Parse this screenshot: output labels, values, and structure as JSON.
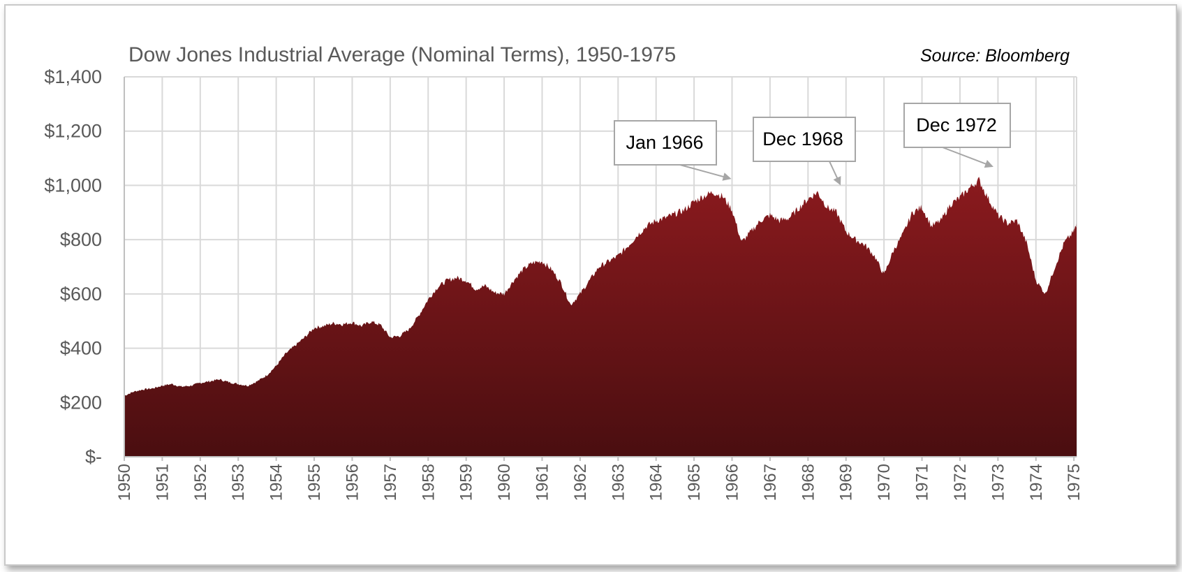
{
  "chart_data": {
    "type": "area",
    "title": "Dow Jones Industrial Average (Nominal Terms), 1950-1975",
    "source": "Source: Bloomberg",
    "xlabel": "",
    "ylabel": "",
    "xlim": [
      1950,
      1975.07
    ],
    "ylim": [
      0,
      1400
    ],
    "grid": true,
    "y_ticks": [
      {
        "value": 0,
        "label": "$-"
      },
      {
        "value": 200,
        "label": "$200"
      },
      {
        "value": 400,
        "label": "$400"
      },
      {
        "value": 600,
        "label": "$600"
      },
      {
        "value": 800,
        "label": "$800"
      },
      {
        "value": 1000,
        "label": "$1,000"
      },
      {
        "value": 1200,
        "label": "$1,200"
      },
      {
        "value": 1400,
        "label": "$1,400"
      }
    ],
    "x_ticks": [
      "1950",
      "1951",
      "1952",
      "1953",
      "1954",
      "1955",
      "1956",
      "1957",
      "1958",
      "1959",
      "1960",
      "1961",
      "1962",
      "1963",
      "1964",
      "1965",
      "1966",
      "1967",
      "1968",
      "1969",
      "1970",
      "1971",
      "1972",
      "1973",
      "1974",
      "1975"
    ],
    "series": [
      {
        "name": "Dow Jones Industrial Average",
        "color_top": "#8b1a1e",
        "color_bottom": "#4a0e10",
        "x": [
          1950.0,
          1950.25,
          1950.5,
          1950.75,
          1951.0,
          1951.25,
          1951.5,
          1951.75,
          1952.0,
          1952.25,
          1952.5,
          1952.75,
          1953.0,
          1953.25,
          1953.5,
          1953.75,
          1954.0,
          1954.25,
          1954.5,
          1954.75,
          1955.0,
          1955.25,
          1955.5,
          1955.75,
          1956.0,
          1956.25,
          1956.5,
          1956.75,
          1957.0,
          1957.25,
          1957.5,
          1957.75,
          1958.0,
          1958.25,
          1958.5,
          1958.75,
          1959.0,
          1959.25,
          1959.5,
          1959.75,
          1960.0,
          1960.25,
          1960.5,
          1960.75,
          1961.0,
          1961.25,
          1961.5,
          1961.75,
          1962.0,
          1962.25,
          1962.5,
          1962.75,
          1963.0,
          1963.25,
          1963.5,
          1963.75,
          1964.0,
          1964.25,
          1964.5,
          1964.75,
          1965.0,
          1965.25,
          1965.5,
          1965.75,
          1966.0,
          1966.25,
          1966.5,
          1966.75,
          1967.0,
          1967.25,
          1967.5,
          1967.75,
          1968.0,
          1968.25,
          1968.5,
          1968.75,
          1969.0,
          1969.25,
          1969.5,
          1969.75,
          1970.0,
          1970.25,
          1970.5,
          1970.75,
          1971.0,
          1971.25,
          1971.5,
          1971.75,
          1972.0,
          1972.25,
          1972.5,
          1972.75,
          1973.0,
          1973.25,
          1973.5,
          1973.75,
          1974.0,
          1974.25,
          1974.5,
          1974.75,
          1975.0,
          1975.07
        ],
        "values": [
          225,
          240,
          248,
          252,
          262,
          268,
          258,
          262,
          272,
          278,
          285,
          275,
          268,
          262,
          278,
          300,
          335,
          380,
          410,
          440,
          475,
          482,
          492,
          488,
          495,
          482,
          498,
          485,
          440,
          445,
          470,
          520,
          580,
          625,
          650,
          660,
          650,
          618,
          630,
          605,
          600,
          650,
          690,
          715,
          720,
          690,
          640,
          560,
          600,
          650,
          700,
          720,
          740,
          775,
          815,
          850,
          870,
          880,
          895,
          910,
          940,
          960,
          975,
          960,
          910,
          790,
          830,
          870,
          890,
          870,
          880,
          915,
          950,
          975,
          920,
          900,
          830,
          800,
          780,
          740,
          670,
          760,
          820,
          900,
          920,
          850,
          870,
          930,
          955,
          990,
          1020,
          950,
          890,
          860,
          870,
          790,
          650,
          600,
          700,
          790,
          830,
          860
        ]
      }
    ],
    "annotations": [
      {
        "label": "Jan 1966",
        "x": 1966.05,
        "y": 1005
      },
      {
        "label": "Dec 1968",
        "x": 1968.95,
        "y": 985
      },
      {
        "label": "Dec 1972",
        "x": 1972.95,
        "y": 1050
      }
    ]
  }
}
